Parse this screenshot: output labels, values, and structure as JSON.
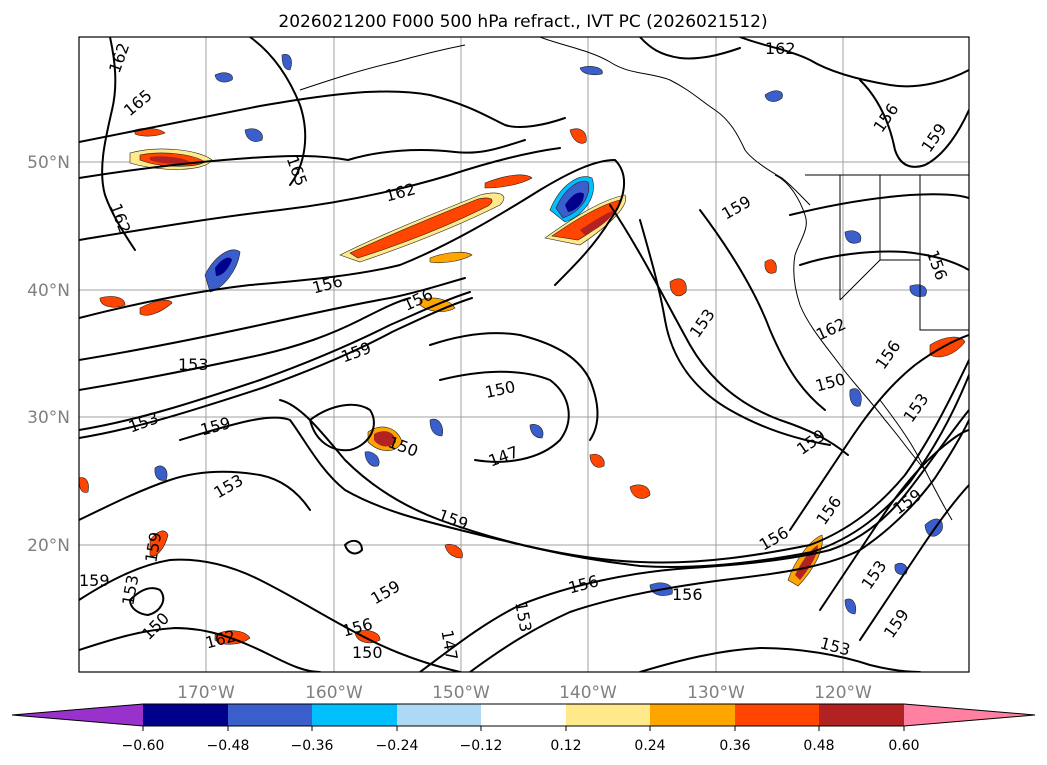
{
  "title": "2026021200 F000 500 hPa refract., IVT PC (2026021512)",
  "lat_labels": [
    "50°N",
    "40°N",
    "30°N",
    "20°N"
  ],
  "lon_labels": [
    "170°W",
    "160°W",
    "150°W",
    "140°W",
    "130°W",
    "120°W"
  ],
  "colorbar": {
    "ticks": [
      "−0.60",
      "−0.48",
      "−0.36",
      "−0.24",
      "−0.12",
      "0.12",
      "0.24",
      "0.36",
      "0.48",
      "0.60"
    ],
    "colors": {
      "under": "#9932cc",
      "bins": [
        "#00008b",
        "#3a5fcd",
        "#00bfff",
        "#add8f6",
        "#ffffff",
        "#ffe98a",
        "#ffa500",
        "#ff4500",
        "#b22222",
        "#ff80a0"
      ],
      "over": "#ff80a0"
    }
  },
  "contour_labels": [
    "162",
    "165",
    "165",
    "162",
    "162",
    "162",
    "156",
    "159",
    "156",
    "156",
    "159",
    "153",
    "159",
    "156",
    "162",
    "150",
    "153",
    "156",
    "150",
    "153",
    "159",
    "153",
    "150",
    "147",
    "159",
    "153",
    "159",
    "156",
    "159",
    "156",
    "159",
    "153",
    "153",
    "159",
    "156",
    "159",
    "156",
    "153",
    "150",
    "159",
    "156",
    "162",
    "147",
    "150",
    "153"
  ],
  "positive_color": "#ff4500",
  "negative_color": "#3a5fcd"
}
